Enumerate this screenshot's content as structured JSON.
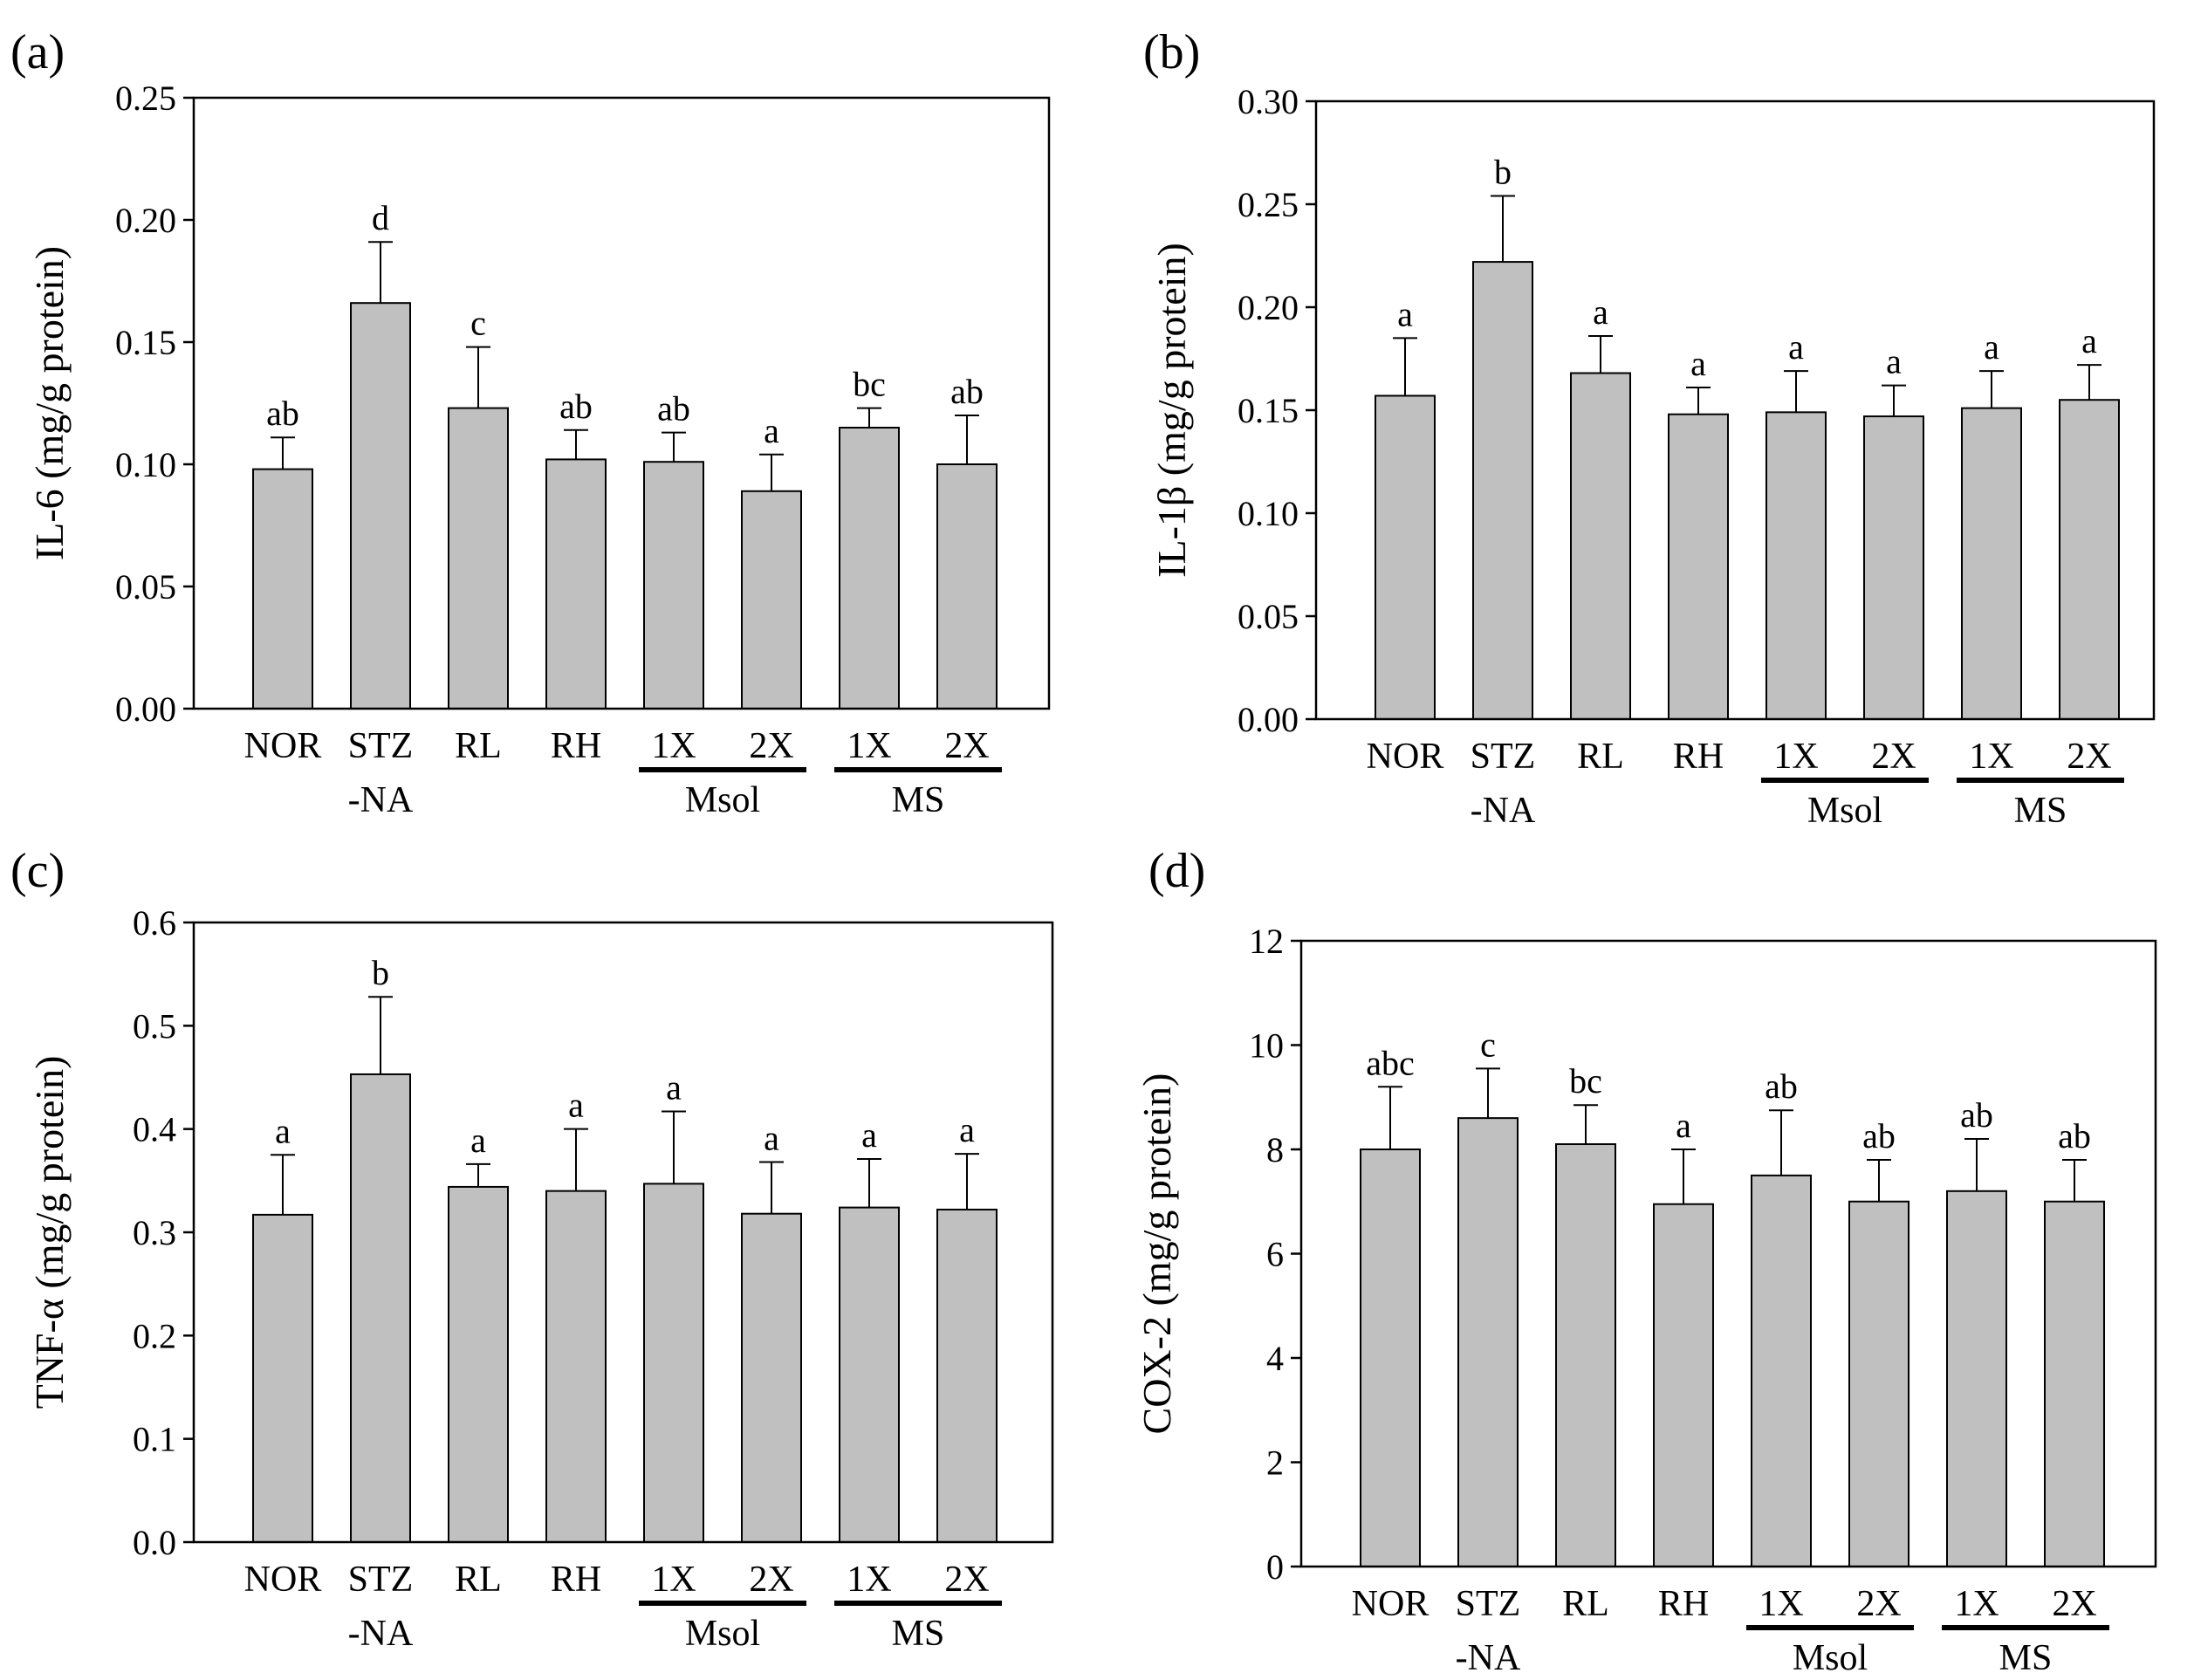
{
  "chart_data": [
    {
      "panel": "(a)",
      "type": "bar",
      "categories": [
        "NOR",
        "STZ\n-NA",
        "RL",
        "RH",
        "1X",
        "2X",
        "1X",
        "2X"
      ],
      "groups": [
        {
          "label": "Msol",
          "from": 4,
          "to": 5
        },
        {
          "label": "MS",
          "from": 6,
          "to": 7
        }
      ],
      "values": [
        0.098,
        0.166,
        0.123,
        0.102,
        0.101,
        0.089,
        0.115,
        0.1
      ],
      "errors": [
        0.013,
        0.025,
        0.025,
        0.012,
        0.012,
        0.015,
        0.008,
        0.02
      ],
      "letters": [
        "ab",
        "d",
        "c",
        "ab",
        "ab",
        "a",
        "bc",
        "ab"
      ],
      "ylabel": "IL-6 (mg/g protein)",
      "ylim": [
        0,
        0.25
      ],
      "yticks": [
        "0.00",
        "0.05",
        "0.10",
        "0.15",
        "0.20",
        "0.25"
      ]
    },
    {
      "panel": "(b)",
      "type": "bar",
      "categories": [
        "NOR",
        "STZ\n-NA",
        "RL",
        "RH",
        "1X",
        "2X",
        "1X",
        "2X"
      ],
      "groups": [
        {
          "label": "Msol",
          "from": 4,
          "to": 5
        },
        {
          "label": "MS",
          "from": 6,
          "to": 7
        }
      ],
      "values": [
        0.157,
        0.222,
        0.168,
        0.148,
        0.149,
        0.147,
        0.151,
        0.155
      ],
      "errors": [
        0.028,
        0.032,
        0.018,
        0.013,
        0.02,
        0.015,
        0.018,
        0.017
      ],
      "letters": [
        "a",
        "b",
        "a",
        "a",
        "a",
        "a",
        "a",
        "a"
      ],
      "ylabel": "IL-1β (mg/g protein)",
      "ylim": [
        0,
        0.3
      ],
      "yticks": [
        "0.00",
        "0.05",
        "0.10",
        "0.15",
        "0.20",
        "0.25",
        "0.30"
      ]
    },
    {
      "panel": "(c)",
      "type": "bar",
      "categories": [
        "NOR",
        "STZ\n-NA",
        "RL",
        "RH",
        "1X",
        "2X",
        "1X",
        "2X"
      ],
      "groups": [
        {
          "label": "Msol",
          "from": 4,
          "to": 5
        },
        {
          "label": "MS",
          "from": 6,
          "to": 7
        }
      ],
      "values": [
        0.317,
        0.453,
        0.344,
        0.34,
        0.347,
        0.318,
        0.324,
        0.322
      ],
      "errors": [
        0.058,
        0.075,
        0.022,
        0.06,
        0.07,
        0.05,
        0.047,
        0.054
      ],
      "letters": [
        "a",
        "b",
        "a",
        "a",
        "a",
        "a",
        "a",
        "a"
      ],
      "ylabel": "TNF-α (mg/g protein)",
      "ylim": [
        0,
        0.6
      ],
      "yticks": [
        "0.0",
        "0.1",
        "0.2",
        "0.3",
        "0.4",
        "0.5",
        "0.6"
      ]
    },
    {
      "panel": "(d)",
      "type": "bar",
      "categories": [
        "NOR",
        "STZ\n-NA",
        "RL",
        "RH",
        "1X",
        "2X",
        "1X",
        "2X"
      ],
      "groups": [
        {
          "label": "Msol",
          "from": 4,
          "to": 5
        },
        {
          "label": "MS",
          "from": 6,
          "to": 7
        }
      ],
      "values": [
        8.0,
        8.6,
        8.1,
        6.95,
        7.5,
        7.0,
        7.2,
        7.0
      ],
      "errors": [
        1.2,
        0.95,
        0.75,
        1.05,
        1.25,
        0.8,
        1.0,
        0.8
      ],
      "letters": [
        "abc",
        "c",
        "bc",
        "a",
        "ab",
        "ab",
        "ab",
        "ab"
      ],
      "ylabel": "COX-2 (mg/g protein)",
      "ylim": [
        0,
        12
      ],
      "yticks": [
        "0",
        "2",
        "4",
        "6",
        "8",
        "10",
        "12"
      ]
    }
  ]
}
